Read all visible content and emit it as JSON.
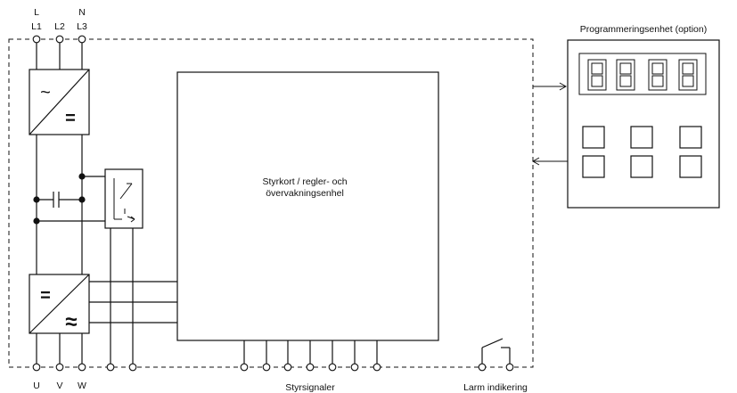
{
  "terminals_top": {
    "phase_l": "L",
    "phase_n": "N",
    "l1": "L1",
    "l2": "L2",
    "l3": "L3"
  },
  "terminals_bottom": {
    "u": "U",
    "v": "V",
    "w": "W"
  },
  "labels": {
    "control_board_line1": "Styrkort / regler- och",
    "control_board_line2": "övervakningsenhel",
    "programming_unit": "Programmeringsenhet (option)",
    "control_signals": "Styrsignaler",
    "alarm": "Larm indikering"
  },
  "symbols": {
    "rectifier_ac": "~",
    "rectifier_dc": "=",
    "inverter_dc": "=",
    "inverter_ac": "≈"
  }
}
